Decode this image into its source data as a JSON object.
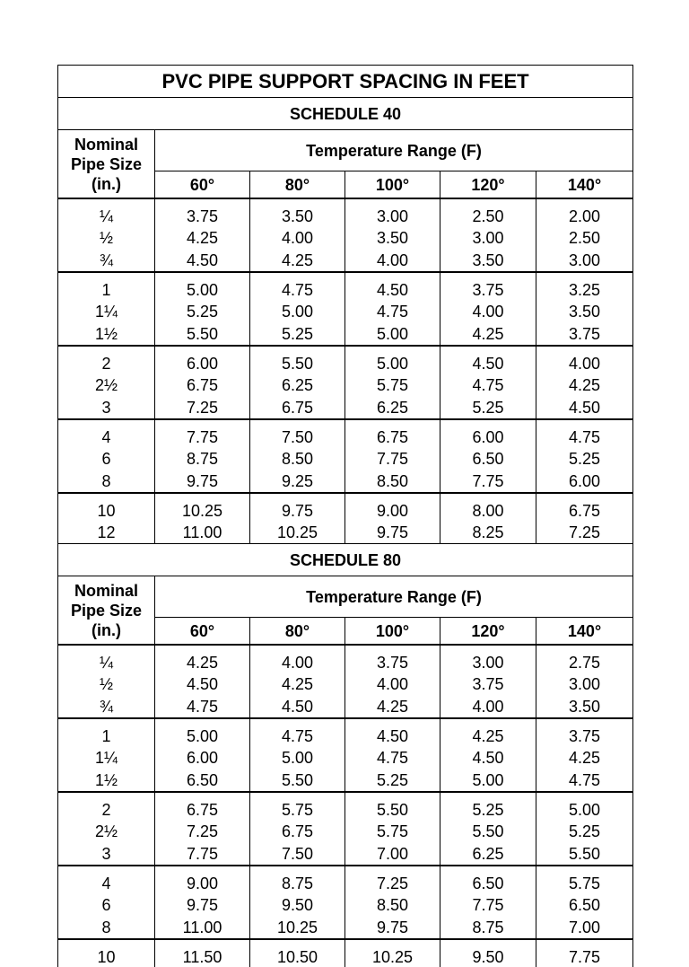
{
  "title": "PVC PIPE SUPPORT SPACING IN FEET",
  "sections": [
    {
      "title": "SCHEDULE 40",
      "size_header": [
        "Nominal",
        "Pipe Size",
        "(in.)"
      ],
      "range_header": "Temperature Range (F)",
      "temps": [
        "60°",
        "80°",
        "100°",
        "120°",
        "140°"
      ],
      "groups": [
        [
          [
            "¼",
            "3.75",
            "3.50",
            "3.00",
            "2.50",
            "2.00"
          ],
          [
            "½",
            "4.25",
            "4.00",
            "3.50",
            "3.00",
            "2.50"
          ],
          [
            "¾",
            "4.50",
            "4.25",
            "4.00",
            "3.50",
            "3.00"
          ]
        ],
        [
          [
            "1",
            "5.00",
            "4.75",
            "4.50",
            "3.75",
            "3.25"
          ],
          [
            "1¼",
            "5.25",
            "5.00",
            "4.75",
            "4.00",
            "3.50"
          ],
          [
            "1½",
            "5.50",
            "5.25",
            "5.00",
            "4.25",
            "3.75"
          ]
        ],
        [
          [
            "2",
            "6.00",
            "5.50",
            "5.00",
            "4.50",
            "4.00"
          ],
          [
            "2½",
            "6.75",
            "6.25",
            "5.75",
            "4.75",
            "4.25"
          ],
          [
            "3",
            "7.25",
            "6.75",
            "6.25",
            "5.25",
            "4.50"
          ]
        ],
        [
          [
            "4",
            "7.75",
            "7.50",
            "6.75",
            "6.00",
            "4.75"
          ],
          [
            "6",
            "8.75",
            "8.50",
            "7.75",
            "6.50",
            "5.25"
          ],
          [
            "8",
            "9.75",
            "9.25",
            "8.50",
            "7.75",
            "6.00"
          ]
        ],
        [
          [
            "10",
            "10.25",
            "9.75",
            "9.00",
            "8.00",
            "6.75"
          ],
          [
            "12",
            "11.00",
            "10.25",
            "9.75",
            "8.25",
            "7.25"
          ]
        ]
      ]
    },
    {
      "title": "SCHEDULE 80",
      "size_header": [
        "Nominal",
        "Pipe Size",
        "(in.)"
      ],
      "range_header": "Temperature Range (F)",
      "temps": [
        "60°",
        "80°",
        "100°",
        "120°",
        "140°"
      ],
      "groups": [
        [
          [
            "¼",
            "4.25",
            "4.00",
            "3.75",
            "3.00",
            "2.75"
          ],
          [
            "½",
            "4.50",
            "4.25",
            "4.00",
            "3.75",
            "3.00"
          ],
          [
            "¾",
            "4.75",
            "4.50",
            "4.25",
            "4.00",
            "3.50"
          ]
        ],
        [
          [
            "1",
            "5.00",
            "4.75",
            "4.50",
            "4.25",
            "3.75"
          ],
          [
            "1¼",
            "6.00",
            "5.00",
            "4.75",
            "4.50",
            "4.25"
          ],
          [
            "1½",
            "6.50",
            "5.50",
            "5.25",
            "5.00",
            "4.75"
          ]
        ],
        [
          [
            "2",
            "6.75",
            "5.75",
            "5.50",
            "5.25",
            "5.00"
          ],
          [
            "2½",
            "7.25",
            "6.75",
            "5.75",
            "5.50",
            "5.25"
          ],
          [
            "3",
            "7.75",
            "7.50",
            "7.00",
            "6.25",
            "5.50"
          ]
        ],
        [
          [
            "4",
            "9.00",
            "8.75",
            "7.25",
            "6.50",
            "5.75"
          ],
          [
            "6",
            "9.75",
            "9.50",
            "8.50",
            "7.75",
            "6.50"
          ],
          [
            "8",
            "11.00",
            "10.25",
            "9.75",
            "8.75",
            "7.00"
          ]
        ],
        [
          [
            "10",
            "11.50",
            "10.50",
            "10.25",
            "9.50",
            "7.75"
          ]
        ]
      ]
    }
  ]
}
